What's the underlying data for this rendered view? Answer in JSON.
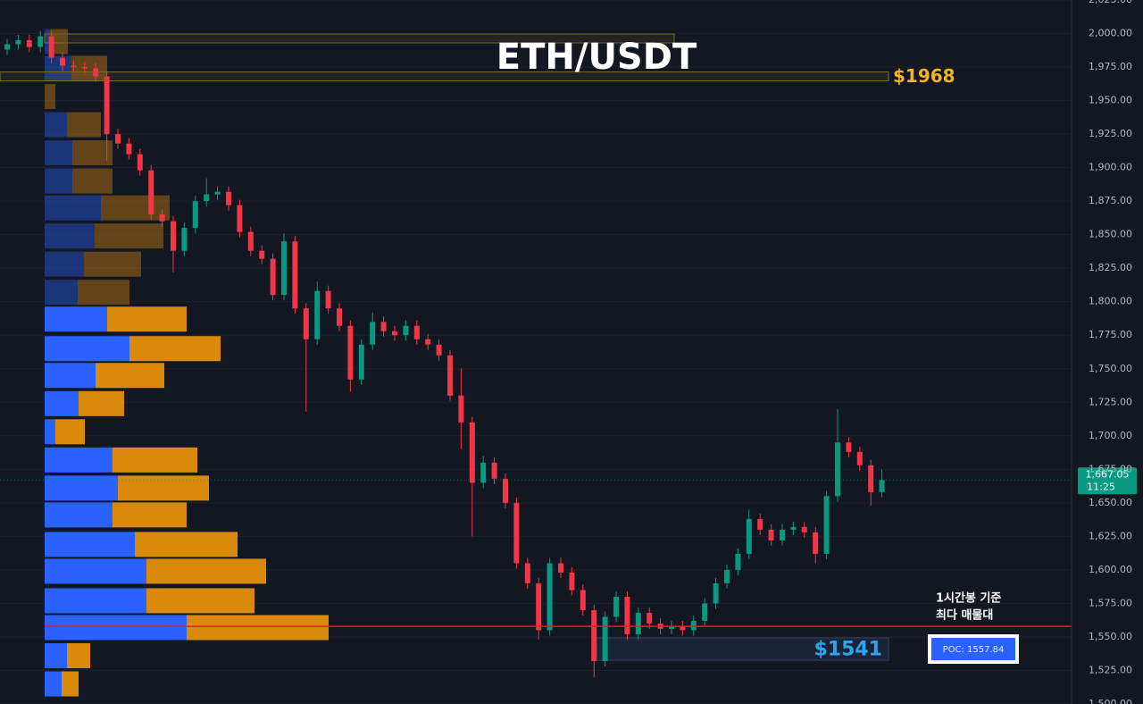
{
  "chart_data": {
    "type": "candlestick",
    "title": "ETH/USDT",
    "ylim": [
      1500,
      2025
    ],
    "yticks": [
      {
        "value": 2025,
        "label": "2,025.00"
      },
      {
        "value": 2000,
        "label": "2,000.00"
      },
      {
        "value": 1975,
        "label": "1,975.00"
      },
      {
        "value": 1950,
        "label": "1,950.00"
      },
      {
        "value": 1925,
        "label": "1,925.00"
      },
      {
        "value": 1900,
        "label": "1,900.00"
      },
      {
        "value": 1875,
        "label": "1,875.00"
      },
      {
        "value": 1850,
        "label": "1,850.00"
      },
      {
        "value": 1825,
        "label": "1,825.00"
      },
      {
        "value": 1800,
        "label": "1,800.00"
      },
      {
        "value": 1775,
        "label": "1,775.00"
      },
      {
        "value": 1750,
        "label": "1,750.00"
      },
      {
        "value": 1725,
        "label": "1,725.00"
      },
      {
        "value": 1700,
        "label": "1,700.00"
      },
      {
        "value": 1675,
        "label": "1,675.00"
      },
      {
        "value": 1650,
        "label": "1,650.00"
      },
      {
        "value": 1625,
        "label": "1,625.00"
      },
      {
        "value": 1600,
        "label": "1,600.00"
      },
      {
        "value": 1575,
        "label": "1,575.00"
      },
      {
        "value": 1550,
        "label": "1,550.00"
      },
      {
        "value": 1525,
        "label": "1,525.00"
      },
      {
        "value": 1500,
        "label": "1,500.00"
      }
    ],
    "grid": true,
    "up_color": "#089981",
    "down_color": "#f23645",
    "open": [
      1988,
      1992,
      1995,
      1990,
      1998,
      1982,
      1976,
      1975,
      1974,
      1968,
      1925,
      1918,
      1910,
      1898,
      1865,
      1860,
      1838,
      1855,
      1875,
      1880,
      1882,
      1872,
      1852,
      1838,
      1832,
      1805,
      1845,
      1795,
      1772,
      1808,
      1795,
      1782,
      1742,
      1768,
      1785,
      1778,
      1775,
      1782,
      1772,
      1768,
      1760,
      1730,
      1710,
      1665,
      1680,
      1668,
      1650,
      1605,
      1590,
      1555,
      1605,
      1598,
      1585,
      1570,
      1532,
      1565,
      1580,
      1552,
      1568,
      1560,
      1556,
      1558,
      1555,
      1562,
      1575,
      1590,
      1600,
      1612,
      1638,
      1630,
      1622,
      1630,
      1632,
      1628,
      1612,
      1655,
      1695,
      1688,
      1678,
      1658
    ],
    "high": [
      1996,
      1999,
      1999,
      2002,
      2002,
      1986,
      1980,
      1979,
      1978,
      1972,
      1929,
      1922,
      1914,
      1902,
      1869,
      1864,
      1859,
      1879,
      1892,
      1886,
      1886,
      1876,
      1856,
      1842,
      1836,
      1851,
      1849,
      1799,
      1815,
      1812,
      1799,
      1786,
      1772,
      1792,
      1789,
      1782,
      1786,
      1786,
      1776,
      1772,
      1764,
      1750,
      1714,
      1685,
      1684,
      1672,
      1654,
      1609,
      1594,
      1609,
      1609,
      1602,
      1589,
      1574,
      1569,
      1584,
      1584,
      1572,
      1572,
      1564,
      1562,
      1562,
      1566,
      1579,
      1594,
      1604,
      1616,
      1645,
      1642,
      1634,
      1634,
      1636,
      1636,
      1632,
      1659,
      1720,
      1699,
      1692,
      1682,
      1675
    ],
    "low": [
      1984,
      1988,
      1986,
      1986,
      1978,
      1972,
      1971,
      1970,
      1964,
      1905,
      1914,
      1906,
      1894,
      1861,
      1856,
      1822,
      1834,
      1851,
      1871,
      1876,
      1868,
      1848,
      1834,
      1828,
      1801,
      1801,
      1791,
      1718,
      1768,
      1791,
      1778,
      1733,
      1738,
      1764,
      1774,
      1771,
      1771,
      1768,
      1764,
      1756,
      1726,
      1690,
      1625,
      1661,
      1664,
      1646,
      1601,
      1586,
      1548,
      1551,
      1594,
      1581,
      1566,
      1520,
      1528,
      1561,
      1548,
      1548,
      1556,
      1552,
      1552,
      1551,
      1551,
      1558,
      1571,
      1586,
      1596,
      1608,
      1626,
      1618,
      1618,
      1626,
      1624,
      1605,
      1608,
      1651,
      1684,
      1674,
      1648,
      1654
    ],
    "close": [
      1992,
      1995,
      1990,
      1998,
      1982,
      1976,
      1975,
      1974,
      1968,
      1925,
      1918,
      1910,
      1898,
      1865,
      1860,
      1838,
      1855,
      1875,
      1880,
      1882,
      1872,
      1852,
      1838,
      1832,
      1805,
      1845,
      1795,
      1772,
      1808,
      1795,
      1782,
      1742,
      1768,
      1785,
      1778,
      1775,
      1782,
      1772,
      1768,
      1760,
      1730,
      1710,
      1665,
      1680,
      1668,
      1650,
      1605,
      1590,
      1555,
      1605,
      1598,
      1585,
      1570,
      1532,
      1565,
      1580,
      1552,
      1568,
      1560,
      1556,
      1558,
      1555,
      1562,
      1575,
      1590,
      1600,
      1612,
      1638,
      1630,
      1622,
      1630,
      1632,
      1628,
      1612,
      1655,
      1695,
      1688,
      1678,
      1658,
      1667.05
    ],
    "volume_profile": {
      "price": [
        1994,
        1974,
        1953,
        1932,
        1911,
        1890,
        1870,
        1849,
        1828,
        1807,
        1787,
        1765,
        1745,
        1724,
        1703,
        1682,
        1661,
        1641,
        1619,
        1599,
        1577,
        1557,
        1536,
        1515
      ],
      "buy": [
        6,
        30,
        0,
        25,
        31,
        31,
        63,
        56,
        44,
        37,
        70,
        95,
        57,
        38,
        12,
        76,
        82,
        76,
        101,
        114,
        114,
        159,
        25,
        19
      ],
      "sell": [
        20,
        40,
        12,
        38,
        45,
        45,
        77,
        77,
        64,
        58,
        89,
        102,
        77,
        51,
        33,
        95,
        102,
        83,
        115,
        134,
        121,
        159,
        26,
        19
      ],
      "buy_color": "#2962ff",
      "sell_color": "#d98a0b"
    },
    "zones": [
      {
        "value": 1968,
        "label": "$1968",
        "color": "#f5b324"
      },
      {
        "value": 1541,
        "label": "$1541",
        "color": "#2ea3f2"
      }
    ],
    "poc": {
      "value": 1557.84,
      "label": "POC: 1557.84",
      "note": [
        "1시간봉 기준",
        "최다 매물대"
      ]
    },
    "last_price": {
      "value": 1667.05,
      "label": "1,667.05",
      "countdown": "11:25"
    }
  }
}
